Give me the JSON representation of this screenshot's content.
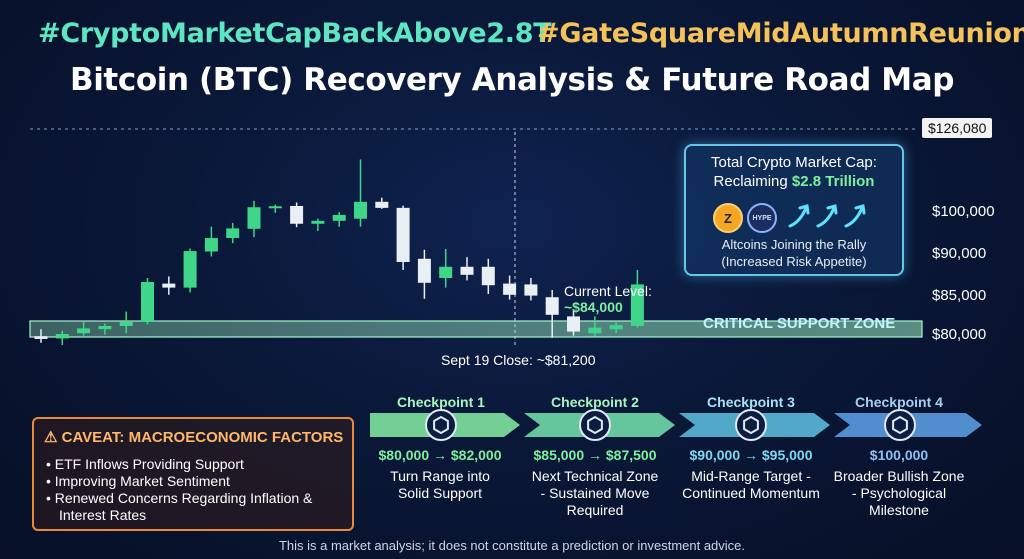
{
  "hashtags": [
    "#CryptoMarketCapBackAbove2.8T",
    "#GateSquareMidAutumnReunion"
  ],
  "title": "Bitcoin (BTC) Recovery Analysis & Future Road Map",
  "chart_data": {
    "type": "candlestick",
    "title": "Bitcoin (BTC) Recovery Analysis & Future Road Map",
    "y_tick_labels": [
      "$126,080",
      "$100,000",
      "$90,000",
      "$85,000",
      "$80,000"
    ],
    "candles": [
      {
        "o": 79600,
        "h": 80600,
        "l": 78400,
        "c": 79100
      },
      {
        "o": 79200,
        "h": 80400,
        "l": 78000,
        "c": 80000
      },
      {
        "o": 80100,
        "h": 81500,
        "l": 79700,
        "c": 80700
      },
      {
        "o": 80600,
        "h": 81300,
        "l": 79900,
        "c": 81000
      },
      {
        "o": 81000,
        "h": 82800,
        "l": 80100,
        "c": 81500
      },
      {
        "o": 81500,
        "h": 87000,
        "l": 81200,
        "c": 86500
      },
      {
        "o": 86300,
        "h": 87200,
        "l": 84900,
        "c": 85800
      },
      {
        "o": 85800,
        "h": 91300,
        "l": 85200,
        "c": 90700
      },
      {
        "o": 90600,
        "h": 96500,
        "l": 89700,
        "c": 93800
      },
      {
        "o": 93800,
        "h": 97400,
        "l": 92600,
        "c": 96100
      },
      {
        "o": 96000,
        "h": 103500,
        "l": 94000,
        "c": 101500
      },
      {
        "o": 101300,
        "h": 102300,
        "l": 99800,
        "c": 101800
      },
      {
        "o": 101900,
        "h": 103000,
        "l": 96400,
        "c": 97200
      },
      {
        "o": 97200,
        "h": 98400,
        "l": 95500,
        "c": 97900
      },
      {
        "o": 97900,
        "h": 100000,
        "l": 96500,
        "c": 99300
      },
      {
        "o": 98400,
        "h": 116500,
        "l": 96500,
        "c": 103200
      },
      {
        "o": 103200,
        "h": 104500,
        "l": 101000,
        "c": 101300
      },
      {
        "o": 101300,
        "h": 102000,
        "l": 88000,
        "c": 89000
      },
      {
        "o": 89400,
        "h": 91000,
        "l": 84400,
        "c": 86400
      },
      {
        "o": 87000,
        "h": 91200,
        "l": 85800,
        "c": 88400
      },
      {
        "o": 88400,
        "h": 89600,
        "l": 86700,
        "c": 87400
      },
      {
        "o": 88400,
        "h": 89400,
        "l": 85000,
        "c": 86100
      },
      {
        "o": 86300,
        "h": 87300,
        "l": 84300,
        "c": 84900
      },
      {
        "o": 86200,
        "h": 87000,
        "l": 84200,
        "c": 84800
      },
      {
        "o": 84600,
        "h": 85500,
        "l": 79300,
        "c": 82400
      },
      {
        "o": 82200,
        "h": 83100,
        "l": 79700,
        "c": 80300
      },
      {
        "o": 80100,
        "h": 82200,
        "l": 79700,
        "c": 80800
      },
      {
        "o": 80600,
        "h": 81600,
        "l": 80100,
        "c": 81100
      },
      {
        "o": 81000,
        "h": 88000,
        "l": 80800,
        "c": 86200
      }
    ],
    "grid": true,
    "series_colors": {
      "up": "#3fd68a",
      "down": "#e8f0f6"
    }
  },
  "chart_labels": {
    "current_label": "Current Level:",
    "current_value": "~$84,000",
    "support_zone": "CRITICAL SUPPORT ZONE",
    "sept_close": "Sept 19 Close: ~$81,200"
  },
  "market_cap_box": {
    "line1": "Total Crypto Market Cap:",
    "line2_prefix": "Reclaiming ",
    "line2_value": "$2.8 Trillion",
    "coin1": "Z",
    "coin2": "HYPE",
    "alt_line1": "Altcoins Joining the Rally",
    "alt_line2": "(Increased Risk Appetite)"
  },
  "caveat": {
    "title": "CAVEAT: MACROECONOMIC FACTORS",
    "items": [
      "ETF Inflows Providing Support",
      "Improving Market Sentiment",
      "Renewed Concerns Regarding Inflation &",
      "Interest Rates"
    ]
  },
  "checkpoints": [
    {
      "title": "Checkpoint 1",
      "range": "$80,000 → $82,000",
      "desc1": "Turn Range into",
      "desc2": "Solid Support",
      "desc3": "",
      "color": "#7fe3a0"
    },
    {
      "title": "Checkpoint 2",
      "range": "$85,000 → $87,500",
      "desc1": "Next Technical Zone",
      "desc2": "- Sustained Move",
      "desc3": "Required",
      "color": "#6fd8a8"
    },
    {
      "title": "Checkpoint 3",
      "range": "$90,000 → $95,000",
      "desc1": "Mid-Range Target -",
      "desc2": "Continued Momentum",
      "desc3": "",
      "color": "#5ab8d8"
    },
    {
      "title": "Checkpoint 4",
      "range": "$100,000",
      "desc1": "Broader Bullish Zone",
      "desc2": "- Psychological",
      "desc3": "Milestone",
      "color": "#5b9be0"
    }
  ],
  "disclaimer": "This is a market analysis; it does not constitute a prediction or investment advice."
}
